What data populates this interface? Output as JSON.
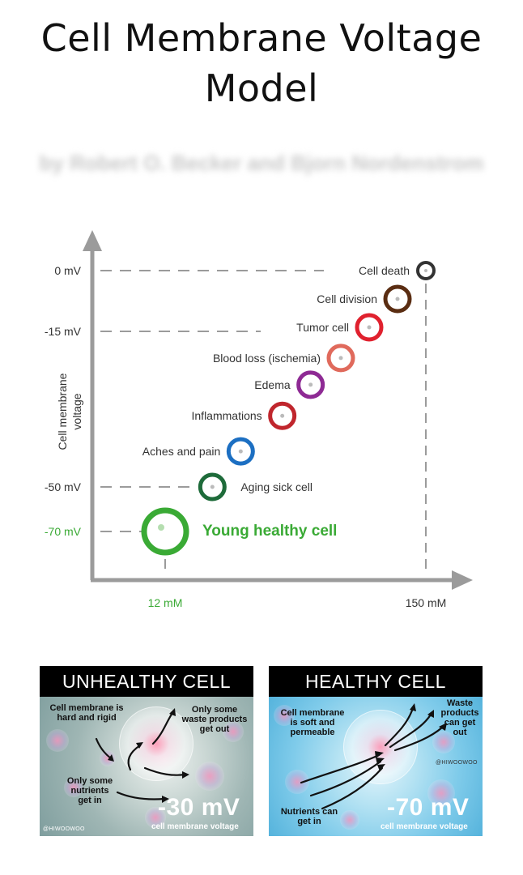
{
  "title": {
    "line1": "Cell Membrane Voltage",
    "line2": "Model"
  },
  "subtitle": "by Robert O. Becker and Bjorn Nordenstrom",
  "chart_data": {
    "type": "scatter",
    "ylabel": "Cell membrane voltage",
    "y_ticks": [
      "0 mV",
      "-15 mV",
      "-50 mV",
      "-70 mV"
    ],
    "y_tick_values": [
      0,
      -15,
      -50,
      -70
    ],
    "x_ticks": [
      "12 mM",
      "150 mM"
    ],
    "x_tick_values": [
      12,
      150
    ],
    "points": [
      {
        "label": "Young healthy cell",
        "x": 12,
        "y": -70,
        "color": "#3aaa35",
        "size": "large",
        "label_side": "right",
        "highlight": true
      },
      {
        "label": "Aging sick cell",
        "x": 37,
        "y": -50,
        "color": "#1e6b3a",
        "size": "medium",
        "label_side": "right"
      },
      {
        "label": "Aches and pain",
        "x": 52,
        "y": -42,
        "color": "#1c6fc2",
        "size": "medium",
        "label_side": "left"
      },
      {
        "label": "Inflammations",
        "x": 74,
        "y": -34,
        "color": "#c0262d",
        "size": "medium",
        "label_side": "left"
      },
      {
        "label": "Edema",
        "x": 89,
        "y": -27,
        "color": "#8e2a94",
        "size": "medium",
        "label_side": "left"
      },
      {
        "label": "Blood loss (ischemia)",
        "x": 105,
        "y": -21,
        "color": "#e06a5c",
        "size": "medium",
        "label_side": "left"
      },
      {
        "label": "Tumor cell",
        "x": 120,
        "y": -14,
        "color": "#e0212e",
        "size": "medium",
        "label_side": "left"
      },
      {
        "label": "Cell division",
        "x": 135,
        "y": -7,
        "color": "#5a2d12",
        "size": "medium",
        "label_side": "left"
      },
      {
        "label": "Cell death",
        "x": 150,
        "y": 0,
        "color": "#333333",
        "size": "small",
        "label_side": "left"
      }
    ],
    "colors": {
      "axis": "#9b9b9b",
      "text": "#333333",
      "healthy": "#3aaa35"
    }
  },
  "panels": {
    "unhealthy": {
      "header": "UNHEALTHY CELL",
      "membrane_line1": "Cell membrane is",
      "membrane_line2": "hard and rigid",
      "waste_line1": "Only some",
      "waste_line2": "waste products",
      "waste_line3": "get out",
      "nutrients_line1": "Only some",
      "nutrients_line2": "nutrients",
      "nutrients_line3": "get in",
      "voltage": "-30 mV",
      "voltage_caption": "cell membrane voltage",
      "watermark": "@HIWOOWOO"
    },
    "healthy": {
      "header": "HEALTHY CELL",
      "membrane_line1": "Cell membrane",
      "membrane_line2": "is soft and",
      "membrane_line3": "permeable",
      "waste_line1": "Waste",
      "waste_line2": "products",
      "waste_line3": "can get",
      "waste_line4": "out",
      "nutrients_line1": "Nutrients can",
      "nutrients_line2": "get in",
      "voltage": "-70 mV",
      "voltage_caption": "cell membrane voltage",
      "watermark": "@HIWOOWOO"
    }
  }
}
